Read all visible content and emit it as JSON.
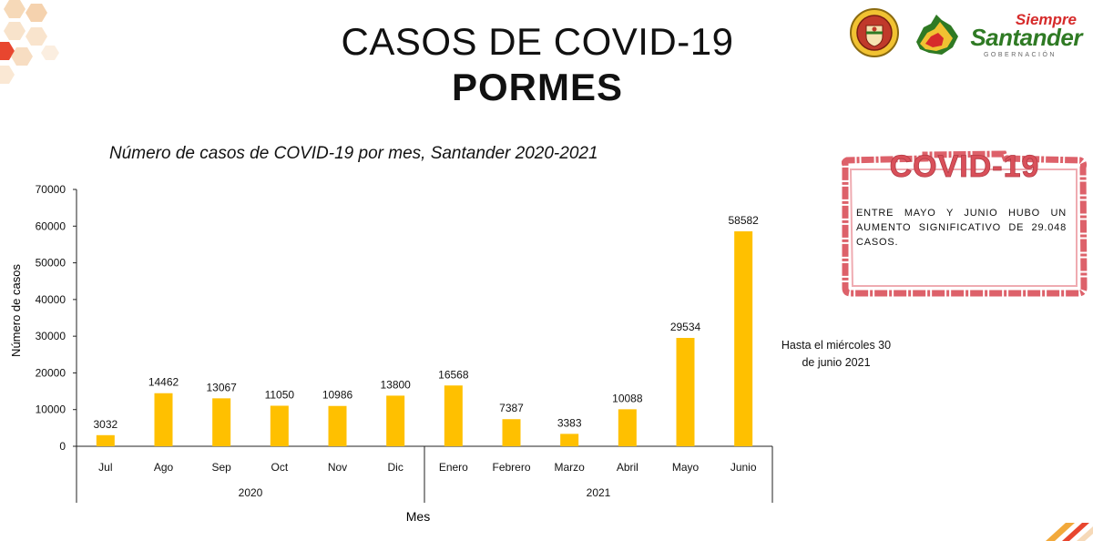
{
  "header": {
    "title_line1": "CASOS DE COVID-19",
    "title_line2": "PORMES"
  },
  "brand": {
    "top": "Siempre",
    "main": "Santander",
    "sub": "GOBERNACIÓN"
  },
  "note": {
    "line1": "Hasta el miércoles 30",
    "line2": "de junio 2021"
  },
  "stamp": {
    "heading": "COVID-19",
    "text": "ENTRE MAYO Y JUNIO HUBO UN AUMENTO SIGNIFICATIVO DE 29.048 CASOS."
  },
  "colors": {
    "bar": "#FFC000",
    "stamp": "#d9505a",
    "brand_red": "#d62b2b",
    "brand_green": "#2f7a24"
  },
  "chart_data": {
    "type": "bar",
    "title": "Número de casos de COVID-19 por mes, Santander 2020-2021",
    "xlabel": "Mes",
    "ylabel": "Número de casos",
    "ylim": [
      0,
      70000
    ],
    "yticks": [
      "0",
      "10000",
      "20000",
      "30000",
      "40000",
      "50000",
      "60000",
      "70000"
    ],
    "grid": false,
    "categories": [
      "Jul",
      "Ago",
      "Sep",
      "Oct",
      "Nov",
      "Dic",
      "Enero",
      "Febrero",
      "Marzo",
      "Abril",
      "Mayo",
      "Junio"
    ],
    "values": [
      3032,
      14462,
      13067,
      11050,
      10986,
      13800,
      16568,
      7387,
      3383,
      10088,
      29534,
      58582
    ],
    "groups": [
      {
        "label": "2020",
        "count": 6
      },
      {
        "label": "2021",
        "count": 6
      }
    ]
  }
}
